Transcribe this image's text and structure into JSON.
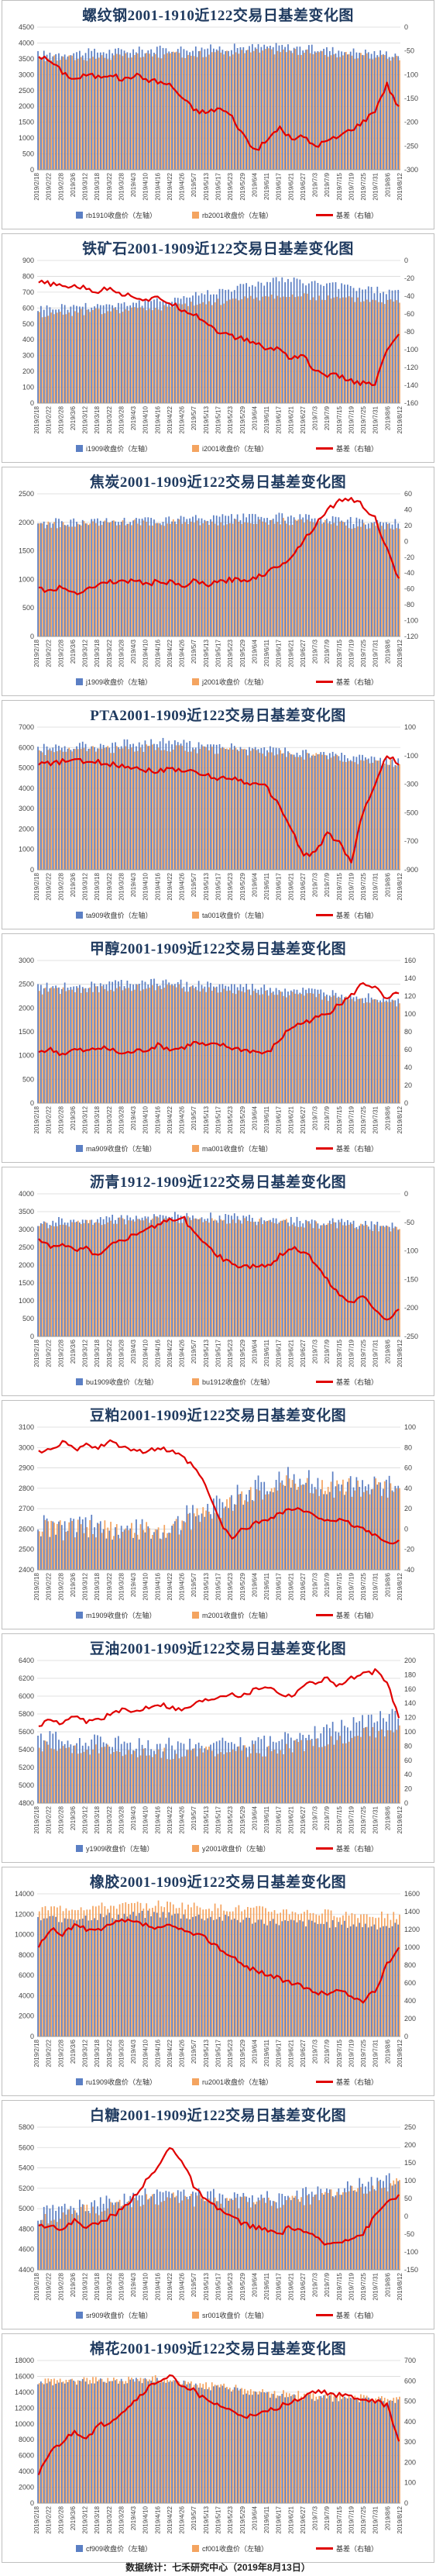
{
  "footer": "数据统计：七禾研究中心（2019年8月13日）",
  "dates": [
    "2019/2/18",
    "2019/2/22",
    "2019/2/28",
    "2019/3/6",
    "2019/3/12",
    "2019/3/18",
    "2019/3/22",
    "2019/3/28",
    "2019/4/3",
    "2019/4/10",
    "2019/4/16",
    "2019/4/22",
    "2019/4/26",
    "2019/5/7",
    "2019/5/13",
    "2019/5/17",
    "2019/5/23",
    "2019/5/29",
    "2019/6/4",
    "2019/6/11",
    "2019/6/17",
    "2019/6/21",
    "2019/6/27",
    "2019/7/3",
    "2019/7/9",
    "2019/7/15",
    "2019/7/19",
    "2019/7/25",
    "2019/7/31",
    "2019/8/6",
    "2019/8/12"
  ],
  "colors": {
    "near": "#5b7fc4",
    "far": "#f4a460",
    "basis": "#e00000"
  },
  "chart_data": [
    {
      "type": "bar+line",
      "title": "螺纹钢2001-1910近122交易日基差变化图",
      "left_ticks": [
        "0",
        "500",
        "1000",
        "1500",
        "2000",
        "2500",
        "3000",
        "3500",
        "4000",
        "4500"
      ],
      "left_range": [
        0,
        4500
      ],
      "right_ticks": [
        "0",
        "-50",
        "-100",
        "-150",
        "-200",
        "-250",
        "-300"
      ],
      "right_range": [
        -300,
        0
      ],
      "series": [
        {
          "name": "rb1910收盘价（左轴）",
          "kind": "bar",
          "level": 3700,
          "trend": [
            3650,
            3800,
            3900,
            3650
          ],
          "noise": 120
        },
        {
          "name": "rb2001收盘价（左轴）",
          "kind": "bar",
          "level": 3550,
          "trend": [
            3500,
            3600,
            3750,
            3500
          ],
          "noise": 110
        },
        {
          "name": "基差（右轴）",
          "kind": "line",
          "values": [
            -60,
            -72,
            -95,
            -110,
            -100,
            -105,
            -98,
            -112,
            -100,
            -110,
            -115,
            -122,
            -150,
            -175,
            -180,
            -170,
            -185,
            -225,
            -260,
            -240,
            -210,
            -235,
            -230,
            -250,
            -240,
            -230,
            -215,
            -200,
            -175,
            -120,
            -170
          ]
        }
      ]
    },
    {
      "type": "bar+line",
      "title": "铁矿石2001-1909近122交易日基差变化图",
      "left_ticks": [
        "0",
        "100",
        "200",
        "300",
        "400",
        "500",
        "600",
        "700",
        "800",
        "900"
      ],
      "left_range": [
        0,
        900
      ],
      "right_ticks": [
        "0",
        "-20",
        "-40",
        "-60",
        "-80",
        "-100",
        "-120",
        "-140",
        "-160"
      ],
      "right_range": [
        -160,
        0
      ],
      "series": [
        {
          "name": "i1909收盘价（左轴）",
          "kind": "bar",
          "level": 620,
          "trend": [
            600,
            640,
            780,
            700
          ],
          "noise": 25
        },
        {
          "name": "i2001收盘价（左轴）",
          "kind": "bar",
          "level": 580,
          "trend": [
            560,
            600,
            680,
            640
          ],
          "noise": 22
        },
        {
          "name": "基差（右轴）",
          "kind": "line",
          "values": [
            -25,
            -26,
            -30,
            -28,
            -32,
            -35,
            -30,
            -38,
            -40,
            -45,
            -42,
            -48,
            -55,
            -60,
            -70,
            -80,
            -85,
            -88,
            -92,
            -100,
            -98,
            -110,
            -105,
            -125,
            -128,
            -130,
            -135,
            -138,
            -140,
            -100,
            -85
          ]
        }
      ]
    },
    {
      "type": "bar+line",
      "title": "焦炭2001-1909近122交易日基差变化图",
      "left_ticks": [
        "0",
        "500",
        "1000",
        "1500",
        "2000",
        "2500"
      ],
      "left_range": [
        0,
        2500
      ],
      "right_ticks": [
        "-120",
        "-100",
        "-80",
        "-60",
        "-40",
        "-20",
        "0",
        "20",
        "40",
        "60"
      ],
      "right_range": [
        -120,
        60
      ],
      "series": [
        {
          "name": "j1909收盘价（左轴）",
          "kind": "bar",
          "level": 2050,
          "trend": [
            2000,
            2050,
            2100,
            2000
          ],
          "noise": 70
        },
        {
          "name": "j2001收盘价（左轴）",
          "kind": "bar",
          "level": 1980,
          "trend": [
            1950,
            2000,
            2020,
            1900
          ],
          "noise": 65
        },
        {
          "name": "基差（右轴）",
          "kind": "line",
          "values": [
            -60,
            -62,
            -58,
            -65,
            -60,
            -55,
            -50,
            -52,
            -48,
            -55,
            -50,
            -52,
            -58,
            -50,
            -55,
            -52,
            -48,
            -50,
            -45,
            -40,
            -30,
            -20,
            0,
            20,
            40,
            50,
            55,
            45,
            30,
            -10,
            -50
          ]
        }
      ]
    },
    {
      "type": "bar+line",
      "title": "PTA2001-1909近122交易日基差变化图",
      "left_ticks": [
        "0",
        "1000",
        "2000",
        "3000",
        "4000",
        "5000",
        "6000",
        "7000"
      ],
      "left_range": [
        0,
        7000
      ],
      "right_ticks": [
        "-900",
        "-700",
        "-500",
        "-300",
        "-100",
        "100"
      ],
      "right_range": [
        -900,
        100
      ],
      "series": [
        {
          "name": "ta909收盘价（左轴）",
          "kind": "bar",
          "level": 6000,
          "trend": [
            6000,
            6300,
            5900,
            5300
          ],
          "noise": 200
        },
        {
          "name": "ta001收盘价（左轴）",
          "kind": "bar",
          "level": 5800,
          "trend": [
            5800,
            6000,
            5700,
            5200
          ],
          "noise": 190
        },
        {
          "name": "基差（右轴）",
          "kind": "line",
          "values": [
            -150,
            -160,
            -140,
            -130,
            -150,
            -145,
            -160,
            -170,
            -180,
            -200,
            -210,
            -190,
            -200,
            -220,
            -240,
            -260,
            -250,
            -280,
            -300,
            -320,
            -450,
            -600,
            -800,
            -780,
            -650,
            -700,
            -850,
            -500,
            -300,
            -100,
            -150
          ]
        }
      ]
    },
    {
      "type": "bar+line",
      "title": "甲醇2001-1909近122交易日基差变化图",
      "left_ticks": [
        "0",
        "500",
        "1000",
        "1500",
        "2000",
        "2500",
        "3000"
      ],
      "left_range": [
        0,
        3000
      ],
      "right_ticks": [
        "0",
        "20",
        "40",
        "60",
        "80",
        "100",
        "120",
        "140",
        "160"
      ],
      "right_range": [
        0,
        160
      ],
      "series": [
        {
          "name": "ma909收盘价（左轴）",
          "kind": "bar",
          "level": 2450,
          "trend": [
            2450,
            2550,
            2400,
            2200
          ],
          "noise": 80
        },
        {
          "name": "ma001收盘价（左轴）",
          "kind": "bar",
          "level": 2350,
          "trend": [
            2350,
            2450,
            2300,
            2100
          ],
          "noise": 75
        },
        {
          "name": "基差（右轴）",
          "kind": "line",
          "values": [
            58,
            60,
            55,
            60,
            58,
            62,
            60,
            55,
            58,
            60,
            65,
            60,
            62,
            68,
            64,
            66,
            62,
            60,
            58,
            55,
            70,
            85,
            90,
            95,
            100,
            110,
            120,
            135,
            130,
            115,
            125
          ]
        }
      ]
    },
    {
      "type": "bar+line",
      "title": "沥青1912-1909近122交易日基差变化图",
      "left_ticks": [
        "0",
        "500",
        "1000",
        "1500",
        "2000",
        "2500",
        "3000",
        "3500",
        "4000"
      ],
      "left_range": [
        0,
        4000
      ],
      "right_ticks": [
        "-250",
        "-200",
        "-150",
        "-100",
        "-50",
        "0"
      ],
      "right_range": [
        -250,
        0
      ],
      "series": [
        {
          "name": "bu1909收盘价（左轴）",
          "kind": "bar",
          "level": 3300,
          "trend": [
            3200,
            3400,
            3300,
            3100
          ],
          "noise": 120
        },
        {
          "name": "bu1912收盘价（左轴）",
          "kind": "bar",
          "level": 3200,
          "trend": [
            3100,
            3300,
            3200,
            3000
          ],
          "noise": 110
        },
        {
          "name": "基差（右轴）",
          "kind": "line",
          "values": [
            -80,
            -95,
            -85,
            -100,
            -95,
            -110,
            -90,
            -80,
            -70,
            -60,
            -55,
            -45,
            -40,
            -70,
            -90,
            -110,
            -120,
            -130,
            -125,
            -130,
            -110,
            -95,
            -100,
            -120,
            -150,
            -175,
            -190,
            -180,
            -200,
            -220,
            -200
          ]
        }
      ]
    },
    {
      "type": "bar+line",
      "title": "豆粕2001-1909近122交易日基差变化图",
      "left_ticks": [
        "2400",
        "2500",
        "2600",
        "2700",
        "2800",
        "2900",
        "3000",
        "3100"
      ],
      "left_range": [
        2400,
        3100
      ],
      "right_ticks": [
        "-40",
        "-20",
        "0",
        "20",
        "40",
        "60",
        "80",
        "100"
      ],
      "right_range": [
        -40,
        100
      ],
      "series": [
        {
          "name": "m1909收盘价（左轴）",
          "kind": "bar",
          "level": 2650,
          "trend": [
            2620,
            2600,
            2850,
            2800
          ],
          "noise": 60
        },
        {
          "name": "m2001收盘价（左轴）",
          "kind": "bar",
          "level": 2620,
          "trend": [
            2600,
            2580,
            2820,
            2790
          ],
          "noise": 55
        },
        {
          "name": "基差（右轴）",
          "kind": "line",
          "values": [
            75,
            80,
            85,
            78,
            82,
            80,
            85,
            82,
            78,
            75,
            80,
            76,
            70,
            60,
            40,
            10,
            -10,
            0,
            5,
            10,
            15,
            20,
            18,
            12,
            10,
            8,
            5,
            0,
            -5,
            -15,
            -10
          ]
        }
      ]
    },
    {
      "type": "bar+line",
      "title": "豆油2001-1909近122交易日基差变化图",
      "left_ticks": [
        "4800",
        "5000",
        "5200",
        "5400",
        "5600",
        "5800",
        "6000",
        "6200",
        "6400"
      ],
      "left_range": [
        4800,
        6400
      ],
      "right_ticks": [
        "0",
        "20",
        "40",
        "60",
        "80",
        "100",
        "120",
        "140",
        "160",
        "180",
        "200"
      ],
      "right_range": [
        0,
        200
      ],
      "series": [
        {
          "name": "y1909收盘价（左轴）",
          "kind": "bar",
          "level": 5500,
          "trend": [
            5550,
            5450,
            5500,
            5800
          ],
          "noise": 80
        },
        {
          "name": "y2001收盘价（左轴）",
          "kind": "bar",
          "level": 5400,
          "trend": [
            5450,
            5350,
            5400,
            5650
          ],
          "noise": 75
        },
        {
          "name": "基差（右轴）",
          "kind": "line",
          "values": [
            110,
            115,
            112,
            120,
            115,
            118,
            125,
            130,
            128,
            135,
            140,
            135,
            130,
            140,
            145,
            150,
            155,
            150,
            160,
            165,
            155,
            150,
            165,
            170,
            175,
            165,
            175,
            180,
            185,
            170,
            120
          ]
        }
      ]
    },
    {
      "type": "bar+line",
      "title": "橡胶2001-1909近122交易日基差变化图",
      "left_ticks": [
        "0",
        "2000",
        "4000",
        "6000",
        "8000",
        "10000",
        "12000",
        "14000"
      ],
      "left_range": [
        0,
        14000
      ],
      "right_ticks": [
        "0",
        "200",
        "400",
        "600",
        "800",
        "1000",
        "1200",
        "1400",
        "1600"
      ],
      "right_range": [
        0,
        1600
      ],
      "series": [
        {
          "name": "ru1909收盘价（左轴）",
          "kind": "bar",
          "level": 11500,
          "trend": [
            11500,
            12000,
            11200,
            10800
          ],
          "noise": 400
        },
        {
          "name": "ru2001收盘价（左轴）",
          "kind": "bar",
          "level": 12500,
          "trend": [
            12500,
            13000,
            12300,
            11800
          ],
          "noise": 400
        },
        {
          "name": "基差（右轴）",
          "kind": "line",
          "values": [
            1000,
            1200,
            1150,
            1250,
            1200,
            1180,
            1250,
            1300,
            1280,
            1250,
            1200,
            1250,
            1180,
            1150,
            1100,
            1000,
            900,
            800,
            750,
            700,
            650,
            600,
            550,
            500,
            480,
            520,
            450,
            400,
            500,
            800,
            1000
          ]
        }
      ]
    },
    {
      "type": "bar+line",
      "title": "白糖2001-1909近122交易日基差变化图",
      "left_ticks": [
        "4400",
        "4600",
        "4800",
        "5000",
        "5200",
        "5400",
        "5600",
        "5800"
      ],
      "left_range": [
        4400,
        5800
      ],
      "right_ticks": [
        "-150",
        "-100",
        "-50",
        "0",
        "50",
        "100",
        "150",
        "200",
        "250"
      ],
      "right_range": [
        -150,
        250
      ],
      "series": [
        {
          "name": "sr909收盘价（左轴）",
          "kind": "bar",
          "level": 5000,
          "trend": [
            4950,
            5150,
            5100,
            5300
          ],
          "noise": 70
        },
        {
          "name": "sr001收盘价（左轴）",
          "kind": "bar",
          "level": 4950,
          "trend": [
            4900,
            5100,
            5050,
            5250
          ],
          "noise": 65
        },
        {
          "name": "基差（右轴）",
          "kind": "line",
          "values": [
            -30,
            -20,
            -40,
            -10,
            -30,
            -20,
            0,
            20,
            60,
            100,
            140,
            200,
            150,
            80,
            40,
            20,
            0,
            -20,
            -30,
            -40,
            -50,
            -30,
            -40,
            -60,
            -80,
            -70,
            -60,
            -50,
            0,
            40,
            60
          ]
        }
      ]
    },
    {
      "type": "bar+line",
      "title": "棉花2001-1909近122交易日基差变化图",
      "left_ticks": [
        "0",
        "2000",
        "4000",
        "6000",
        "8000",
        "10000",
        "12000",
        "14000",
        "16000",
        "18000"
      ],
      "left_range": [
        0,
        18000
      ],
      "right_ticks": [
        "0",
        "100",
        "200",
        "300",
        "400",
        "500",
        "600",
        "700"
      ],
      "right_range": [
        0,
        700
      ],
      "series": [
        {
          "name": "cf909收盘价（左轴）",
          "kind": "bar",
          "level": 15000,
          "trend": [
            15200,
            15500,
            13500,
            12800
          ],
          "noise": 400
        },
        {
          "name": "cf001收盘价（左轴）",
          "kind": "bar",
          "level": 15300,
          "trend": [
            15500,
            15800,
            13900,
            13200
          ],
          "noise": 400
        },
        {
          "name": "基差（右轴）",
          "kind": "line",
          "values": [
            150,
            250,
            300,
            350,
            320,
            380,
            400,
            450,
            500,
            560,
            600,
            620,
            580,
            550,
            500,
            480,
            450,
            430,
            420,
            450,
            470,
            500,
            520,
            550,
            540,
            530,
            520,
            510,
            500,
            480,
            300
          ]
        }
      ]
    }
  ]
}
